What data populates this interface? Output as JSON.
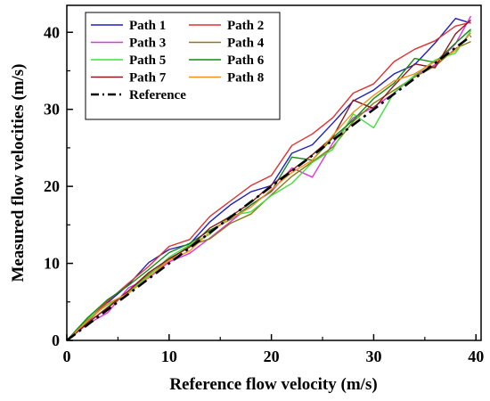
{
  "chart_data": {
    "type": "line",
    "title": "",
    "xlabel": "Reference flow velocity (m/s)",
    "ylabel": "Measured flow velocities (m/s)",
    "xlim": [
      0,
      40.5
    ],
    "ylim": [
      0,
      43.5
    ],
    "xticks": [
      0,
      10,
      20,
      30,
      40
    ],
    "yticks": [
      0,
      10,
      20,
      30,
      40
    ],
    "grid": false,
    "legend_position": "top-left",
    "reference": {
      "name": "Reference",
      "color": "#000000",
      "style": "dash-dot",
      "x": [
        0,
        39.5
      ],
      "y": [
        0,
        39.5
      ]
    },
    "x": [
      0,
      2,
      4,
      6,
      8,
      10,
      12,
      14,
      16,
      18,
      20,
      22,
      24,
      26,
      28,
      30,
      32,
      34,
      36,
      38,
      39.5
    ],
    "series": [
      {
        "name": "Path 1",
        "color": "#1f1fbf",
        "values": [
          0,
          2.4,
          4.9,
          7.2,
          10.1,
          11.8,
          12.5,
          15.4,
          17.6,
          19.3,
          20.1,
          24.3,
          25.4,
          28.2,
          31.1,
          32.5,
          34.6,
          35.8,
          38.6,
          41.8,
          41.2
        ]
      },
      {
        "name": "Path 2",
        "color": "#e03030",
        "values": [
          0,
          2.6,
          5.1,
          7.4,
          9.6,
          12.2,
          13.1,
          16.1,
          18.1,
          20.1,
          21.4,
          25.3,
          26.8,
          28.9,
          32.1,
          33.3,
          36.2,
          37.8,
          38.9,
          40.8,
          41.3
        ]
      },
      {
        "name": "Path 3",
        "color": "#e030e0",
        "values": [
          0,
          2.1,
          3.6,
          6.8,
          8.1,
          10.2,
          11.3,
          13.3,
          15.4,
          17.6,
          19.3,
          22.4,
          21.2,
          25.6,
          28.9,
          30.3,
          32.1,
          34.4,
          35.8,
          38.5,
          42.1
        ]
      },
      {
        "name": "Path 4",
        "color": "#8a7a10",
        "values": [
          0,
          2.3,
          4.2,
          6.3,
          8.6,
          10.4,
          12.3,
          13.2,
          15.2,
          16.4,
          18.9,
          21.3,
          23.2,
          25.1,
          28.4,
          30.8,
          32.5,
          34.2,
          35.6,
          37.9,
          38.8
        ]
      },
      {
        "name": "Path 5",
        "color": "#40e040",
        "values": [
          0,
          2.8,
          4.6,
          6.2,
          8.4,
          10.8,
          12.4,
          13.8,
          16.2,
          16.7,
          18.8,
          20.4,
          23.1,
          24.8,
          29.4,
          27.6,
          32.2,
          34.4,
          36.4,
          37.3,
          40.2
        ]
      },
      {
        "name": "Path 6",
        "color": "#108a10",
        "values": [
          0,
          2.9,
          5.3,
          7.1,
          9.2,
          11.4,
          12.6,
          14.3,
          15.7,
          17.6,
          19.4,
          23.8,
          23.4,
          26.3,
          28.6,
          31.4,
          33.4,
          36.6,
          36.1,
          38.6,
          40.4
        ]
      },
      {
        "name": "Path 7",
        "color": "#8a1a1a",
        "values": [
          0,
          2.2,
          4.3,
          6.4,
          8.8,
          10.6,
          12.1,
          14.6,
          16.1,
          17.9,
          20.2,
          22.1,
          24.1,
          26.4,
          31.2,
          30.1,
          33.1,
          35.9,
          35.4,
          39.8,
          41.6
        ]
      },
      {
        "name": "Path 8",
        "color": "#f09020",
        "values": [
          0,
          2.5,
          4.8,
          6.1,
          8.2,
          10.4,
          11.6,
          14.1,
          15.8,
          17.3,
          19.6,
          21.8,
          23.4,
          26.6,
          29.6,
          31.8,
          33.7,
          34.6,
          36.2,
          37.6,
          39.9
        ]
      }
    ]
  }
}
